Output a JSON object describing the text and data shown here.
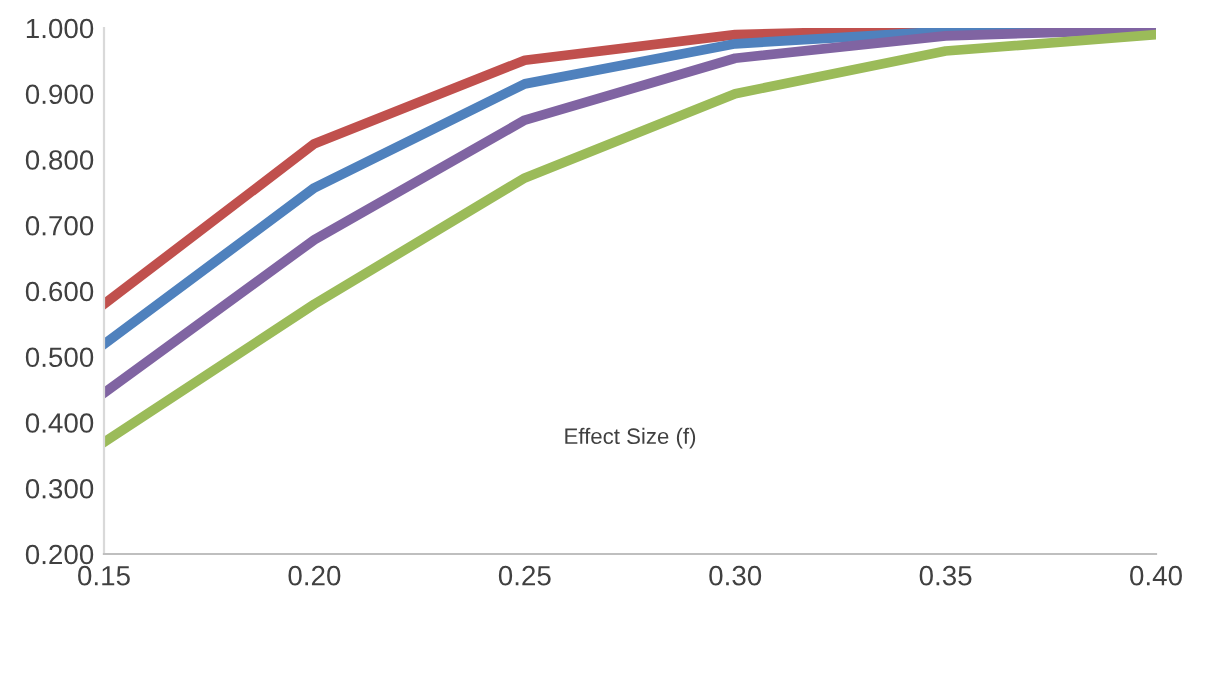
{
  "chart_data": {
    "type": "line",
    "xlabel": "Effect Size (f)",
    "x": [
      0.15,
      0.2,
      0.25,
      0.3,
      0.35,
      0.4
    ],
    "series": [
      {
        "color": "#c0504d",
        "values": [
          0.58,
          0.824,
          0.951,
          0.99,
          0.998,
          1.0
        ]
      },
      {
        "color": "#4f81bd",
        "values": [
          0.519,
          0.757,
          0.915,
          0.976,
          0.995,
          0.999
        ]
      },
      {
        "color": "#8064a2",
        "values": [
          0.445,
          0.678,
          0.86,
          0.954,
          0.988,
          0.998
        ]
      },
      {
        "color": "#9bbb59",
        "values": [
          0.37,
          0.58,
          0.772,
          0.9,
          0.965,
          0.99
        ]
      }
    ],
    "xlim": [
      0.15,
      0.4
    ],
    "ylim": [
      0.2,
      1.0
    ],
    "xticks": [
      {
        "value": 0.15,
        "label": "0.15"
      },
      {
        "value": 0.2,
        "label": "0.20"
      },
      {
        "value": 0.25,
        "label": "0.25"
      },
      {
        "value": 0.3,
        "label": "0.30"
      },
      {
        "value": 0.35,
        "label": "0.35"
      },
      {
        "value": 0.4,
        "label": "0.40"
      }
    ],
    "yticks": [
      {
        "value": 0.2,
        "label": "0.200"
      },
      {
        "value": 0.3,
        "label": "0.300"
      },
      {
        "value": 0.4,
        "label": "0.400"
      },
      {
        "value": 0.5,
        "label": "0.500"
      },
      {
        "value": 0.6,
        "label": "0.600"
      },
      {
        "value": 0.7,
        "label": "0.700"
      },
      {
        "value": 0.8,
        "label": "0.800"
      },
      {
        "value": 0.9,
        "label": "0.900"
      },
      {
        "value": 1.0,
        "label": "1.000"
      }
    ],
    "grid": false,
    "legend": false,
    "marker": "none",
    "line_style": "solid"
  }
}
